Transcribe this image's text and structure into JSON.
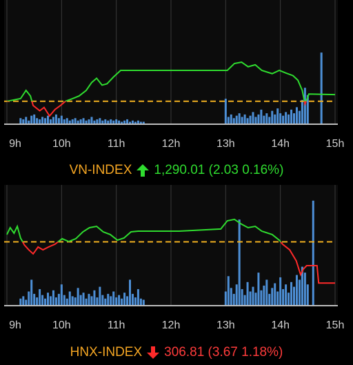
{
  "chart_data": [
    {
      "type": "line",
      "title": "VN-INDEX",
      "summary": "1,290.01 (2.03 0.16%)",
      "title_color": "#f5a623",
      "summary_color": "#2fdc2f",
      "xlim": [
        9,
        15
      ],
      "xticks": [
        {
          "value": 9,
          "label": "9h"
        },
        {
          "value": 10,
          "label": "10h"
        },
        {
          "value": 11,
          "label": "11h"
        },
        {
          "value": 12,
          "label": "12h"
        },
        {
          "value": 13,
          "label": "13h"
        },
        {
          "value": 14,
          "label": "14h"
        },
        {
          "value": 15,
          "label": "15h"
        }
      ],
      "ylim": [
        1281,
        1318
      ],
      "y2lim": [
        0,
        100
      ],
      "reference": 1287.98,
      "reference_color": "#f0b020",
      "grid": true,
      "series": [
        {
          "type": "line",
          "color_up": "#2fdc2f",
          "color_down": "#ff2a2a",
          "x": [
            9,
            9.25,
            9.35,
            9.43,
            9.48,
            9.6,
            9.68,
            9.78,
            9.88,
            9.98,
            10.07,
            10.2,
            10.32,
            10.45,
            10.55,
            10.64,
            10.74,
            10.83,
            10.95,
            11.08,
            11.2,
            11.4,
            12.15,
            13.03,
            13.16,
            13.29,
            13.41,
            13.54,
            13.66,
            13.85,
            13.98,
            14.1,
            14.23,
            14.32,
            14.4,
            14.45,
            14.5,
            14.52,
            15
          ],
          "values": [
            1287.98,
            1288.8,
            1291.3,
            1289.6,
            1286.7,
            1285.1,
            1286.1,
            1283.5,
            1285.5,
            1286.7,
            1288.0,
            1288.8,
            1289.6,
            1291.3,
            1293.7,
            1295.0,
            1292.9,
            1293.3,
            1295.4,
            1297.4,
            1297.4,
            1297.4,
            1297.4,
            1297.4,
            1299.5,
            1299.9,
            1298.5,
            1299.1,
            1297.4,
            1296.4,
            1297.4,
            1296.6,
            1295.8,
            1294.4,
            1291.3,
            1287.2,
            1289.2,
            1290.2,
            1290.01
          ]
        },
        {
          "type": "bar",
          "axis": "y2",
          "color": "#4d8fd6",
          "x": [
            9.25,
            9.3,
            9.35,
            9.4,
            9.45,
            9.5,
            9.55,
            9.6,
            9.65,
            9.7,
            9.75,
            9.8,
            9.85,
            9.9,
            9.95,
            10.0,
            10.05,
            10.1,
            10.15,
            10.2,
            10.25,
            10.3,
            10.35,
            10.4,
            10.45,
            10.5,
            10.55,
            10.6,
            10.65,
            10.7,
            10.75,
            10.8,
            10.85,
            10.9,
            10.95,
            11.0,
            11.05,
            11.1,
            11.15,
            11.2,
            11.25,
            11.3,
            11.35,
            11.4,
            11.45,
            11.5,
            13.0,
            13.05,
            13.1,
            13.15,
            13.2,
            13.25,
            13.3,
            13.35,
            13.4,
            13.45,
            13.5,
            13.55,
            13.6,
            13.65,
            13.7,
            13.75,
            13.8,
            13.85,
            13.9,
            13.95,
            14.0,
            14.05,
            14.1,
            14.15,
            14.2,
            14.25,
            14.3,
            14.35,
            14.4,
            14.45,
            14.5,
            14.75
          ],
          "values": [
            5,
            4,
            6,
            3,
            7,
            8,
            5,
            4,
            6,
            5,
            7,
            4,
            6,
            8,
            5,
            7,
            4,
            5,
            3,
            4,
            5,
            3,
            4,
            5,
            3,
            4,
            6,
            3,
            4,
            5,
            3,
            4,
            3,
            4,
            3,
            4,
            3,
            2,
            3,
            4,
            2,
            3,
            2,
            3,
            2,
            2,
            21,
            6,
            8,
            5,
            7,
            9,
            6,
            8,
            5,
            7,
            10,
            6,
            8,
            12,
            7,
            9,
            6,
            11,
            8,
            13,
            9,
            7,
            10,
            8,
            12,
            9,
            14,
            11,
            20,
            30,
            24,
            59
          ]
        }
      ]
    },
    {
      "type": "line",
      "title": "HNX-INDEX",
      "summary": "306.81 (3.67 1.18%)",
      "title_color": "#f5a623",
      "summary_color": "#ff3b3b",
      "xlim": [
        9,
        15
      ],
      "xticks": [
        {
          "value": 9,
          "label": "9h"
        },
        {
          "value": 10,
          "label": "10h"
        },
        {
          "value": 11,
          "label": "11h"
        },
        {
          "value": 12,
          "label": "12h"
        },
        {
          "value": 13,
          "label": "13h"
        },
        {
          "value": 14,
          "label": "14h"
        },
        {
          "value": 15,
          "label": "15h"
        }
      ],
      "ylim": [
        304.8,
        315.3
      ],
      "y2lim": [
        0,
        100
      ],
      "reference": 310.48,
      "reference_color": "#f0b020",
      "grid": true,
      "series": [
        {
          "type": "line",
          "color_up": "#2fdc2f",
          "color_down": "#ff2a2a",
          "x": [
            9,
            9.06,
            9.13,
            9.19,
            9.25,
            9.32,
            9.4,
            9.48,
            9.57,
            9.66,
            9.76,
            9.88,
            10.01,
            10.13,
            10.26,
            10.39,
            10.51,
            10.64,
            10.76,
            10.89,
            11.02,
            11.14,
            11.27,
            11.4,
            12.15,
            12.91,
            13.03,
            13.16,
            13.29,
            13.41,
            13.54,
            13.66,
            13.85,
            13.98,
            14.04,
            14.17,
            14.29,
            14.37,
            14.42,
            14.48,
            14.67,
            14.7,
            15
          ],
          "values": [
            311.13,
            311.74,
            311.25,
            311.86,
            310.82,
            310.2,
            309.77,
            309.41,
            310.02,
            309.77,
            310.02,
            310.27,
            310.76,
            310.51,
            310.76,
            311.37,
            311.74,
            311.86,
            311.37,
            311.13,
            310.63,
            310.82,
            311.37,
            311.43,
            311.43,
            311.62,
            312.35,
            312.48,
            312.05,
            311.74,
            311.86,
            311.43,
            311.13,
            310.63,
            310.27,
            309.77,
            308.79,
            307.56,
            308.05,
            308.36,
            308.36,
            306.81,
            306.81
          ]
        },
        {
          "type": "bar",
          "axis": "y2",
          "color": "#4d8fd6",
          "x": [
            9.25,
            9.3,
            9.35,
            9.4,
            9.45,
            9.5,
            9.55,
            9.6,
            9.65,
            9.7,
            9.75,
            9.8,
            9.85,
            9.9,
            9.95,
            10.0,
            10.05,
            10.1,
            10.15,
            10.2,
            10.25,
            10.3,
            10.35,
            10.4,
            10.45,
            10.5,
            10.55,
            10.6,
            10.65,
            10.7,
            10.75,
            10.8,
            10.85,
            10.9,
            10.95,
            11.0,
            11.05,
            11.1,
            11.15,
            11.2,
            11.25,
            11.3,
            11.35,
            11.4,
            11.45,
            11.5,
            13.0,
            13.05,
            13.1,
            13.15,
            13.2,
            13.25,
            13.3,
            13.35,
            13.4,
            13.45,
            13.5,
            13.55,
            13.6,
            13.65,
            13.7,
            13.75,
            13.8,
            13.85,
            13.9,
            13.95,
            14.0,
            14.05,
            14.1,
            14.15,
            14.2,
            14.25,
            14.3,
            14.35,
            14.4,
            14.45,
            14.5,
            14.6
          ],
          "values": [
            6,
            8,
            5,
            12,
            22,
            10,
            7,
            14,
            9,
            6,
            11,
            8,
            13,
            7,
            10,
            18,
            9,
            6,
            12,
            8,
            7,
            15,
            9,
            11,
            6,
            10,
            8,
            13,
            7,
            16,
            9,
            6,
            10,
            8,
            12,
            7,
            9,
            6,
            11,
            8,
            22,
            10,
            7,
            14,
            6,
            5,
            12,
            25,
            15,
            10,
            18,
            73,
            14,
            9,
            20,
            12,
            16,
            11,
            28,
            13,
            17,
            22,
            10,
            15,
            19,
            12,
            24,
            14,
            18,
            11,
            20,
            16,
            26,
            22,
            33,
            28,
            18,
            89
          ]
        }
      ]
    }
  ]
}
